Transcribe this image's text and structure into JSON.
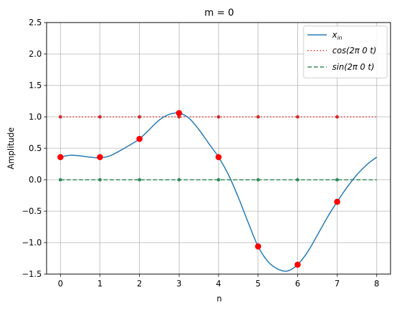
{
  "chart_data": {
    "type": "line",
    "title": "m = 0",
    "xlabel": "n",
    "ylabel": "Amplitude",
    "xlim": [
      -0.35,
      8.35
    ],
    "ylim": [
      -1.5,
      2.5
    ],
    "xticks": [
      0,
      1,
      2,
      3,
      4,
      5,
      6,
      7,
      8
    ],
    "yticks": [
      -1.5,
      -1.0,
      -0.5,
      0.0,
      0.5,
      1.0,
      1.5,
      2.0,
      2.5
    ],
    "xtick_labels": [
      "0",
      "1",
      "2",
      "3",
      "4",
      "5",
      "6",
      "7",
      "8"
    ],
    "ytick_labels": [
      "−1.5",
      "−1.0",
      "−0.5",
      "0.0",
      "0.5",
      "1.0",
      "1.5",
      "2.0",
      "2.5"
    ],
    "grid": true,
    "legend_position": "upper-right",
    "series": [
      {
        "name": "x_in",
        "legend_main": "x",
        "legend_sub": "in",
        "style": "solid",
        "color": "#1f77b4",
        "x": [
          0,
          0.25,
          0.5,
          0.75,
          1,
          1.25,
          1.5,
          1.75,
          2,
          2.25,
          2.5,
          2.75,
          3,
          3.25,
          3.5,
          3.75,
          4,
          4.25,
          4.5,
          4.75,
          5,
          5.25,
          5.5,
          5.75,
          6,
          6.25,
          6.5,
          6.75,
          7,
          7.25,
          7.5,
          7.75,
          8
        ],
        "y": [
          0.36,
          0.39,
          0.38,
          0.36,
          0.35,
          0.38,
          0.46,
          0.55,
          0.65,
          0.8,
          0.95,
          1.04,
          1.06,
          0.98,
          0.8,
          0.58,
          0.36,
          0.08,
          -0.28,
          -0.68,
          -1.06,
          -1.3,
          -1.42,
          -1.45,
          -1.35,
          -1.15,
          -0.88,
          -0.6,
          -0.35,
          -0.12,
          0.08,
          0.24,
          0.36
        ]
      },
      {
        "name": "cos(2π0t)",
        "legend_label": "cos(2π 0 t)",
        "style": "dotted",
        "color": "#d62728",
        "x": [
          0,
          8
        ],
        "y": [
          1.0,
          1.0
        ],
        "samples_x": [
          0,
          1,
          2,
          3,
          4,
          5,
          6,
          7
        ],
        "samples_y": [
          1,
          1,
          1,
          1,
          1,
          1,
          1,
          1
        ]
      },
      {
        "name": "sin(2π0t)",
        "legend_label": "sin(2π 0 t)",
        "style": "dashed",
        "color": "#2e8b57",
        "x": [
          0,
          8
        ],
        "y": [
          0.0,
          0.0
        ],
        "samples_x": [
          0,
          1,
          2,
          3,
          4,
          5,
          6,
          7
        ],
        "samples_y": [
          0,
          0,
          0,
          0,
          0,
          0,
          0,
          0
        ]
      }
    ],
    "samples": {
      "color": "#ff0000",
      "x": [
        0,
        1,
        2,
        3,
        4,
        5,
        6,
        7
      ],
      "y": [
        0.36,
        0.36,
        0.65,
        1.06,
        0.36,
        -1.06,
        -1.35,
        -0.35
      ]
    }
  }
}
